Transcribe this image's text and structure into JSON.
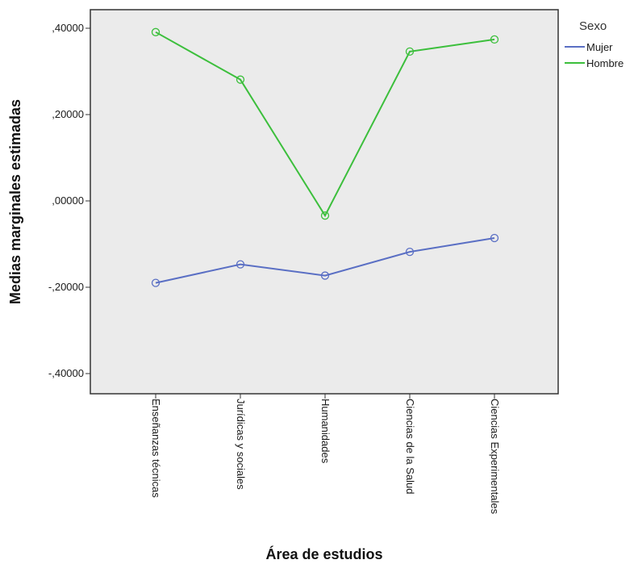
{
  "chart_data": {
    "type": "line",
    "xlabel": "Área de estudios",
    "ylabel": "Medias marginales estimadas",
    "categories": [
      "Enseñanzas técnicas",
      "Jurídicas y sociales",
      "Humanidades",
      "Ciencias de la Salud",
      "Ciencias Experimentales"
    ],
    "ylim": [
      -0.45,
      0.45
    ],
    "yticks": [
      0.4,
      0.2,
      0.0,
      -0.2,
      -0.4
    ],
    "ytick_labels": [
      ",40000",
      ",20000",
      ",00000",
      "-,20000",
      "-,40000"
    ],
    "series": [
      {
        "name": "Mujer",
        "color": "#5a6fc4",
        "values": [
          -0.19,
          -0.147,
          -0.173,
          -0.118,
          -0.086
        ]
      },
      {
        "name": "Hombre",
        "color": "#3cbf3c",
        "values": [
          0.391,
          0.281,
          -0.034,
          0.346,
          0.374
        ]
      }
    ],
    "legend": {
      "title": "Sexo",
      "position": "right"
    },
    "grid": false,
    "plot_background": "#ebebeb"
  }
}
